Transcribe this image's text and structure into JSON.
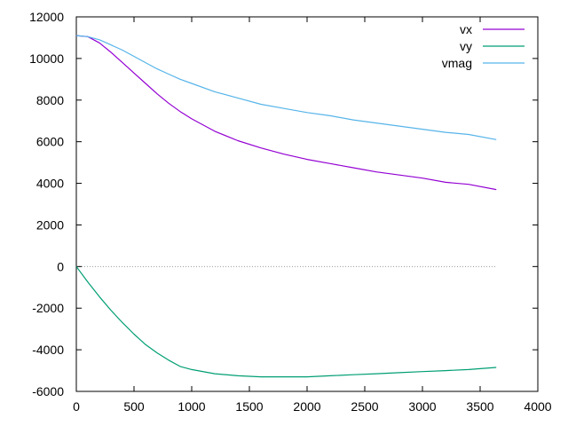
{
  "chart_data": {
    "type": "line",
    "title": "",
    "xlabel": "",
    "ylabel": "",
    "xlim": [
      0,
      4000
    ],
    "ylim": [
      -6000,
      12000
    ],
    "x_ticks": [
      0,
      500,
      1000,
      1500,
      2000,
      2500,
      3000,
      3500,
      4000
    ],
    "y_ticks": [
      -6000,
      -4000,
      -2000,
      0,
      2000,
      4000,
      6000,
      8000,
      10000,
      12000
    ],
    "x_tick_labels": [
      "0",
      "500",
      "1000",
      "1500",
      "2000",
      "2500",
      "3000",
      "3500",
      "4000"
    ],
    "y_tick_labels": [
      "-6000",
      "-4000",
      "-2000",
      "0",
      "2000",
      "4000",
      "6000",
      "8000",
      "10000",
      "12000"
    ],
    "grid": false,
    "zero_line": true,
    "legend_position": "top-right",
    "x": [
      0,
      100,
      200,
      300,
      400,
      500,
      600,
      700,
      800,
      900,
      1000,
      1200,
      1400,
      1600,
      1800,
      2000,
      2200,
      2400,
      2600,
      2800,
      3000,
      3200,
      3400,
      3640
    ],
    "series": [
      {
        "name": "vx",
        "color": "#9400d3",
        "values": [
          11100,
          11050,
          10750,
          10300,
          9800,
          9300,
          8800,
          8300,
          7850,
          7450,
          7100,
          6500,
          6050,
          5700,
          5400,
          5150,
          4950,
          4750,
          4550,
          4400,
          4250,
          4050,
          3950,
          3700
        ]
      },
      {
        "name": "vy",
        "color": "#009e73",
        "values": [
          0,
          -750,
          -1450,
          -2100,
          -2700,
          -3250,
          -3750,
          -4150,
          -4500,
          -4800,
          -4950,
          -5150,
          -5250,
          -5300,
          -5300,
          -5300,
          -5250,
          -5200,
          -5150,
          -5100,
          -5050,
          -5000,
          -4950,
          -4850
        ]
      },
      {
        "name": "vmag",
        "color": "#56b4e9",
        "values": [
          11100,
          11050,
          10900,
          10650,
          10400,
          10100,
          9800,
          9500,
          9250,
          9000,
          8800,
          8400,
          8100,
          7800,
          7600,
          7400,
          7250,
          7050,
          6900,
          6750,
          6600,
          6450,
          6350,
          6100
        ]
      }
    ]
  }
}
